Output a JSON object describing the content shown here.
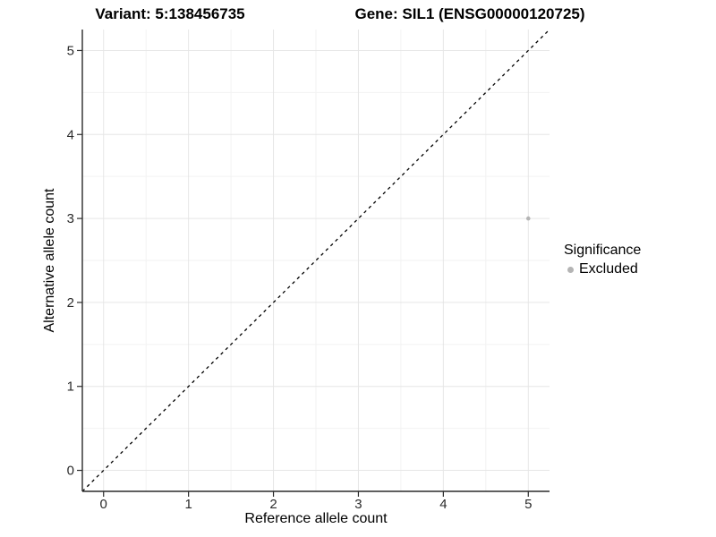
{
  "figure": {
    "title_left": "Variant: 5:138456735",
    "title_right": "Gene: SIL1 (ENSG00000120725)"
  },
  "legend": {
    "title": "Significance",
    "items": [
      {
        "label": "Excluded",
        "color": "#b4b4b4"
      }
    ]
  },
  "chart_data": {
    "type": "scatter",
    "title": "Variant: 5:138456735   |   Gene: SIL1 (ENSG00000120725)",
    "xlabel": "Reference allele count",
    "ylabel": "Alternative allele count",
    "xlim": [
      -0.25,
      5.25
    ],
    "ylim": [
      -0.25,
      5.25
    ],
    "xticks": [
      0,
      1,
      2,
      3,
      4,
      5
    ],
    "yticks": [
      0,
      1,
      2,
      3,
      4,
      5
    ],
    "x_minor": [
      0.5,
      1.5,
      2.5,
      3.5,
      4.5
    ],
    "y_minor": [
      0.5,
      1.5,
      2.5,
      3.5,
      4.5
    ],
    "grid": true,
    "legend_title": "Significance",
    "legend_position": "right",
    "series": [
      {
        "name": "Excluded",
        "color": "#b4b4b4",
        "point_radius": 2.3,
        "points": [
          {
            "x": 5,
            "y": 3
          }
        ]
      }
    ],
    "reference_line": {
      "description": "identity line y = x",
      "style": "dashed",
      "color": "#000000",
      "from": [
        -0.25,
        -0.25
      ],
      "to": [
        5.25,
        5.25
      ]
    },
    "colors": {
      "grid_major": "#e6e6e6",
      "grid_minor": "#f2f2f2",
      "axis_line": "#2b2b2b",
      "tick_mark": "#2b2b2b",
      "tick_label": "#2b2b2b",
      "point": "#b4b4b4"
    }
  }
}
